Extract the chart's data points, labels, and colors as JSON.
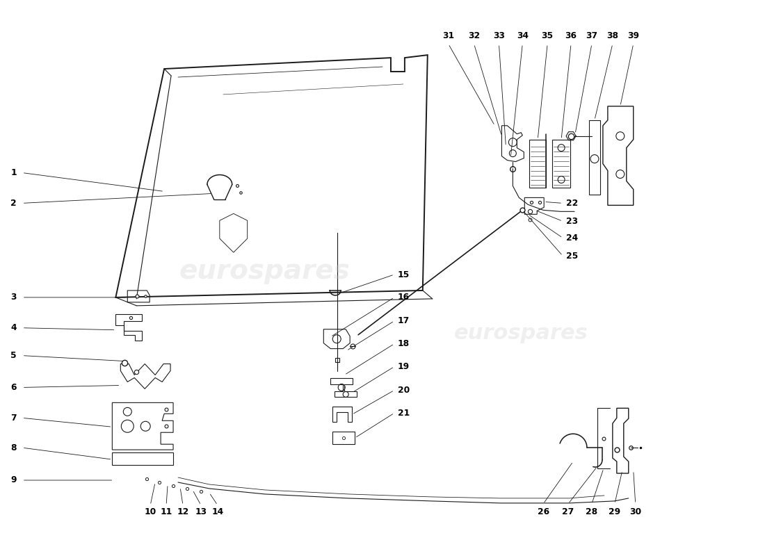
{
  "background_color": "#ffffff",
  "line_color": "#1a1a1a",
  "watermark_text": "eurospares",
  "watermark_color": "#cccccc",
  "watermark_alpha": 0.3
}
